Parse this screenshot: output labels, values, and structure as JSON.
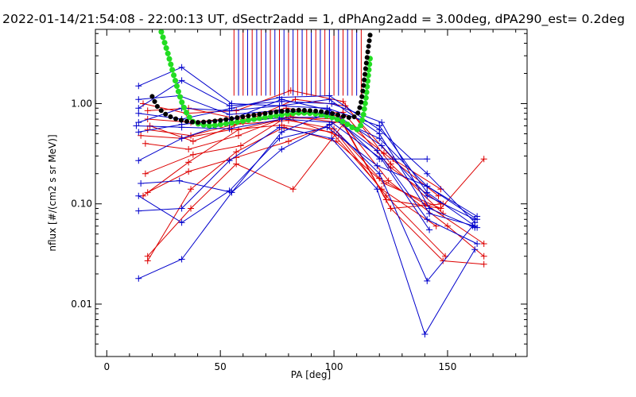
{
  "chart_data": {
    "type": "line",
    "title": "2022-01-14/21:54:08 - 22:00:13 UT, dSectr2add = 1, dPhAng2add = 3.00deg, dPA290_est=   0.2deg",
    "xlabel": "PA [deg]",
    "ylabel": "nflux [#/(cm2 s sr MeV)]",
    "xlim": [
      -5,
      185
    ],
    "ylim": [
      0.003,
      5.5
    ],
    "yscale": "log",
    "grid": false,
    "x_ticks": [
      0,
      50,
      100,
      150
    ],
    "x_tick_labels": [
      "0",
      "50",
      "100",
      "150"
    ],
    "y_ticks": [
      0.01,
      0.1,
      1.0
    ],
    "y_tick_labels": [
      "0.01",
      "0.10",
      "1.00"
    ],
    "colors": {
      "red": "#dd0000",
      "blue": "#0000cc",
      "green": "#22dd22",
      "black": "#000000"
    },
    "vertical_markers": {
      "y_range": [
        1.2,
        5.5
      ],
      "red_x": [
        56,
        60,
        64,
        68,
        72,
        76,
        80,
        84,
        88,
        92,
        96,
        100,
        104,
        108,
        112
      ],
      "blue_x": [
        58,
        62,
        66,
        70,
        74,
        78,
        82,
        86,
        90,
        94,
        98,
        102,
        106,
        110
      ]
    },
    "series": [
      {
        "color": "red",
        "x": [
          18,
          37,
          57,
          82,
          104,
          125,
          148
        ],
        "y": [
          0.03,
          0.09,
          0.25,
          0.14,
          0.62,
          0.09,
          0.1
        ]
      },
      {
        "color": "red",
        "x": [
          18,
          37,
          57,
          78,
          101,
          122,
          147
        ],
        "y": [
          0.027,
          0.14,
          0.33,
          0.58,
          0.42,
          0.16,
          0.09
        ]
      },
      {
        "color": "red",
        "x": [
          18,
          36,
          57,
          80,
          103,
          124,
          150,
          166
        ],
        "y": [
          0.13,
          0.21,
          0.29,
          0.42,
          0.68,
          0.17,
          0.06,
          0.03
        ]
      },
      {
        "color": "red",
        "x": [
          16,
          36,
          58,
          79,
          102,
          123,
          149
        ],
        "y": [
          0.12,
          0.26,
          0.55,
          0.72,
          0.48,
          0.12,
          0.03
        ]
      },
      {
        "color": "red",
        "x": [
          17,
          38,
          59,
          81,
          104,
          125,
          147
        ],
        "y": [
          0.2,
          0.31,
          0.38,
          0.78,
          0.82,
          0.23,
          0.1
        ]
      },
      {
        "color": "red",
        "x": [
          15,
          33,
          55,
          77,
          99,
          121,
          145
        ],
        "y": [
          0.48,
          0.45,
          0.55,
          0.61,
          0.52,
          0.14,
          0.06
        ]
      },
      {
        "color": "red",
        "x": [
          19,
          38,
          60,
          83,
          105,
          126,
          147
        ],
        "y": [
          0.6,
          0.42,
          0.65,
          1.1,
          0.95,
          0.28,
          0.14
        ]
      },
      {
        "color": "red",
        "x": [
          18,
          36,
          58,
          82,
          103,
          122,
          146
        ],
        "y": [
          0.85,
          0.9,
          0.7,
          0.72,
          0.7,
          0.32,
          0.12
        ]
      },
      {
        "color": "red",
        "x": [
          16,
          35,
          57,
          81,
          104,
          125,
          148
        ],
        "y": [
          1.0,
          0.8,
          0.85,
          1.35,
          1.05,
          0.25,
          0.08
        ]
      },
      {
        "color": "red",
        "x": [
          18,
          37,
          56,
          80,
          100,
          120,
          140,
          166
        ],
        "y": [
          0.55,
          0.48,
          0.62,
          0.68,
          0.56,
          0.18,
          0.1,
          0.04
        ]
      },
      {
        "color": "red",
        "x": [
          18,
          37,
          57,
          79,
          102,
          123,
          147,
          166
        ],
        "y": [
          0.7,
          0.65,
          0.72,
          0.9,
          0.75,
          0.11,
          0.09,
          0.28
        ]
      },
      {
        "color": "red",
        "x": [
          17,
          36,
          58,
          80,
          104,
          125,
          148,
          166
        ],
        "y": [
          0.4,
          0.35,
          0.48,
          0.75,
          0.64,
          0.09,
          0.027,
          0.025
        ]
      },
      {
        "color": "blue",
        "x": [
          14,
          33,
          55,
          77,
          98,
          120,
          141,
          161
        ],
        "y": [
          0.018,
          0.028,
          0.13,
          0.35,
          0.62,
          0.2,
          0.017,
          0.06
        ]
      },
      {
        "color": "blue",
        "x": [
          14,
          33,
          54,
          76,
          99,
          119,
          140,
          162
        ],
        "y": [
          0.085,
          0.09,
          0.27,
          0.58,
          0.45,
          0.14,
          0.005,
          0.035
        ]
      },
      {
        "color": "blue",
        "x": [
          14,
          33,
          54,
          76,
          97,
          119,
          141,
          163
        ],
        "y": [
          0.12,
          0.065,
          0.135,
          0.45,
          0.58,
          0.24,
          0.15,
          0.07
        ]
      },
      {
        "color": "blue",
        "x": [
          15,
          32,
          55,
          77,
          98,
          120,
          141
        ],
        "y": [
          0.16,
          0.17,
          0.13,
          0.52,
          0.82,
          0.28,
          0.28
        ]
      },
      {
        "color": "blue",
        "x": [
          14,
          33,
          54,
          76,
          99,
          120,
          141,
          163
        ],
        "y": [
          0.27,
          0.45,
          0.65,
          0.72,
          0.74,
          0.45,
          0.15,
          0.075
        ]
      },
      {
        "color": "blue",
        "x": [
          14,
          33,
          55,
          77,
          98,
          121,
          141,
          162
        ],
        "y": [
          0.52,
          0.62,
          0.7,
          1.1,
          0.86,
          0.38,
          0.12,
          0.07
        ]
      },
      {
        "color": "blue",
        "x": [
          14,
          33,
          54,
          76,
          97,
          120,
          141,
          163
        ],
        "y": [
          0.65,
          0.9,
          0.85,
          0.95,
          0.9,
          0.6,
          0.13,
          0.058
        ]
      },
      {
        "color": "blue",
        "x": [
          14,
          33,
          54,
          77,
          99,
          121,
          142,
          162
        ],
        "y": [
          0.9,
          1.7,
          0.95,
          1.05,
          1.0,
          0.65,
          0.09,
          0.058
        ]
      },
      {
        "color": "blue",
        "x": [
          14,
          33,
          55,
          76,
          98,
          120,
          142,
          162
        ],
        "y": [
          1.5,
          2.3,
          1.0,
          0.95,
          1.1,
          0.5,
          0.08,
          0.06
        ]
      },
      {
        "color": "blue",
        "x": [
          14,
          32,
          54,
          76,
          97,
          119,
          141,
          163
        ],
        "y": [
          1.1,
          1.2,
          0.78,
          0.85,
          0.8,
          0.34,
          0.07,
          0.04
        ]
      },
      {
        "color": "blue",
        "x": [
          13,
          33,
          54,
          77,
          99,
          121,
          142
        ],
        "y": [
          0.6,
          0.58,
          0.56,
          0.7,
          0.65,
          0.28,
          0.055
        ]
      },
      {
        "color": "blue",
        "x": [
          14,
          33,
          55,
          76,
          98,
          120,
          141,
          162
        ],
        "y": [
          0.8,
          0.7,
          0.9,
          1.15,
          1.2,
          0.55,
          0.2,
          0.065
        ]
      }
    ],
    "black_curve": {
      "x": [
        20,
        22,
        24,
        26,
        28,
        30,
        33,
        36,
        40,
        45,
        50,
        55,
        60,
        65,
        70,
        75,
        80,
        85,
        90,
        95,
        100,
        103,
        106,
        108,
        110,
        111,
        112,
        113,
        114,
        115,
        116
      ],
      "y": [
        1.18,
        0.95,
        0.85,
        0.78,
        0.74,
        0.71,
        0.68,
        0.66,
        0.65,
        0.66,
        0.68,
        0.71,
        0.74,
        0.77,
        0.8,
        0.83,
        0.85,
        0.86,
        0.85,
        0.83,
        0.79,
        0.76,
        0.73,
        0.72,
        0.76,
        0.85,
        1.05,
        1.5,
        2.3,
        3.4,
        5.0
      ]
    },
    "green_curve": {
      "x": [
        24,
        25,
        26,
        27,
        28,
        29,
        30,
        31,
        32,
        33,
        34,
        35,
        36,
        37,
        38,
        40,
        43,
        46,
        50,
        55,
        60,
        65,
        70,
        75,
        80,
        85,
        90,
        95,
        100,
        104,
        107,
        109,
        110,
        111,
        112,
        113,
        114,
        115,
        116
      ],
      "y": [
        5.2,
        4.4,
        3.7,
        3.1,
        2.55,
        2.1,
        1.75,
        1.45,
        1.22,
        1.04,
        0.91,
        0.82,
        0.75,
        0.7,
        0.66,
        0.63,
        0.61,
        0.6,
        0.62,
        0.64,
        0.67,
        0.7,
        0.73,
        0.76,
        0.79,
        0.81,
        0.8,
        0.77,
        0.72,
        0.66,
        0.6,
        0.56,
        0.55,
        0.56,
        0.62,
        0.78,
        1.1,
        1.8,
        3.0
      ]
    }
  }
}
